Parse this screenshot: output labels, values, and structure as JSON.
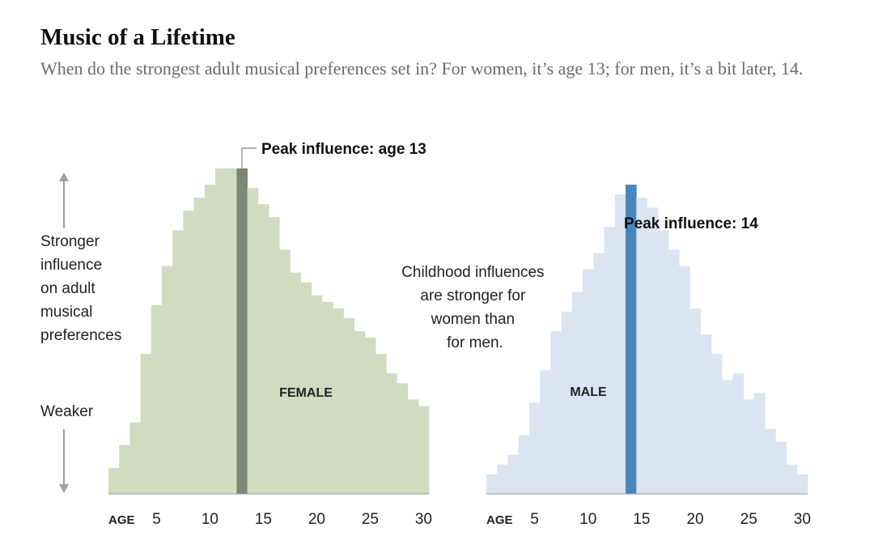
{
  "header": {
    "title": "Music of a Lifetime",
    "subtitle": "When do the strongest adult musical preferences set in? For women, it’s age 13; for men, it’s a bit later, 14."
  },
  "axis_label": {
    "stronger_lines": [
      "Stronger",
      "influence",
      "on adult",
      "musical",
      "preferences"
    ],
    "weaker": "Weaker"
  },
  "note_lines": [
    "Childhood influences",
    "are stronger for",
    "women than",
    "for men."
  ],
  "colors": {
    "female_fill": "#d0dbc0",
    "female_peak": "#7b8873",
    "male_fill": "#dbe4f1",
    "male_peak": "#4a86be",
    "axis": "#999999",
    "arrow": "#a0a0a0"
  },
  "chart_data": [
    {
      "type": "bar",
      "name": "FEMALE",
      "title": "FEMALE",
      "xlabel": "AGE",
      "ylabel": "Stronger influence on adult musical preferences",
      "categories": [
        1,
        2,
        3,
        4,
        5,
        6,
        7,
        8,
        9,
        10,
        11,
        12,
        13,
        14,
        15,
        16,
        17,
        18,
        19,
        20,
        21,
        22,
        23,
        24,
        25,
        26,
        27,
        28,
        29,
        30
      ],
      "values": [
        8,
        15,
        22,
        43,
        58,
        70,
        81,
        87,
        91,
        95,
        100,
        100,
        100,
        94,
        89,
        85,
        75,
        68,
        65,
        61,
        59,
        57,
        54,
        50,
        48,
        43,
        37,
        34,
        29,
        27
      ],
      "peak_age": 13,
      "peak_label": "Peak influence: age 13",
      "ticks": [
        5,
        10,
        15,
        20,
        25,
        30
      ],
      "xlim": [
        0.5,
        30.5
      ],
      "ylim": [
        0,
        100
      ]
    },
    {
      "type": "bar",
      "name": "MALE",
      "title": "MALE",
      "xlabel": "AGE",
      "ylabel": "Stronger influence on adult musical preferences",
      "categories": [
        1,
        2,
        3,
        4,
        5,
        6,
        7,
        8,
        9,
        10,
        11,
        12,
        13,
        14,
        15,
        16,
        17,
        18,
        19,
        20,
        21,
        22,
        23,
        24,
        25,
        26,
        27,
        28,
        29,
        30
      ],
      "values": [
        6,
        9,
        12,
        18,
        28,
        38,
        50,
        56,
        62,
        69,
        74,
        82,
        92,
        95,
        91,
        88,
        81,
        75,
        70,
        57,
        49,
        43,
        35,
        37,
        29,
        31,
        20,
        16,
        9,
        6
      ],
      "peak_age": 14,
      "peak_label": "Peak influence: 14",
      "ticks": [
        5,
        10,
        15,
        20,
        25,
        30
      ],
      "xlim": [
        0.5,
        30.5
      ],
      "ylim": [
        0,
        100
      ]
    }
  ]
}
